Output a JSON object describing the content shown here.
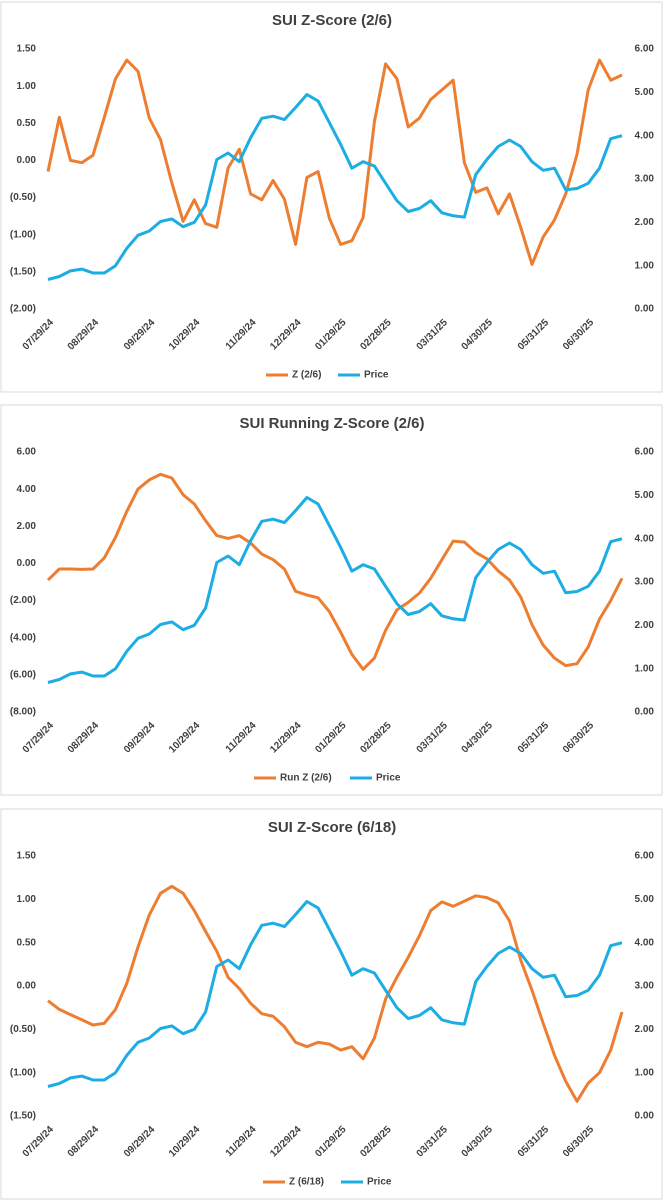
{
  "chart_data": [
    {
      "type": "line",
      "title": "SUI Z-Score (2/6)",
      "categories": [
        "07/29/24",
        null,
        null,
        null,
        "08/29/24",
        null,
        null,
        null,
        null,
        "09/29/24",
        null,
        null,
        null,
        "10/29/24",
        null,
        null,
        null,
        null,
        "11/29/24",
        null,
        null,
        null,
        "12/29/24",
        null,
        null,
        null,
        "01/29/25",
        null,
        null,
        null,
        "02/28/25",
        null,
        null,
        null,
        null,
        "03/31/25",
        null,
        null,
        null,
        "04/30/25",
        null,
        null,
        null,
        null,
        "05/31/25",
        null,
        null,
        null,
        "06/30/25",
        null,
        null,
        null
      ],
      "series": [
        {
          "name": "Z (2/6)",
          "color": "#ed7d31",
          "values": [
            -0.15,
            0.58,
            0.0,
            -0.03,
            0.07,
            0.58,
            1.1,
            1.35,
            1.2,
            0.57,
            0.28,
            -0.3,
            -0.82,
            -0.53,
            -0.85,
            -0.9,
            -0.1,
            0.15,
            -0.45,
            -0.53,
            -0.27,
            -0.52,
            -1.13,
            -0.23,
            -0.15,
            -0.78,
            -1.13,
            -1.08,
            -0.77,
            0.52,
            1.3,
            1.1,
            0.45,
            0.57,
            0.82,
            0.95,
            1.08,
            -0.03,
            -0.43,
            -0.37,
            -0.72,
            -0.45,
            -0.9,
            -1.4,
            -1.03,
            -0.8,
            -0.45,
            0.08,
            0.95,
            1.35,
            1.08,
            1.15
          ]
        },
        {
          "name": "Price",
          "color": "#1cade4",
          "axis": "y2",
          "values": [
            0.68,
            0.75,
            0.88,
            0.92,
            0.83,
            0.83,
            1.0,
            1.4,
            1.7,
            1.8,
            2.02,
            2.08,
            1.9,
            2.0,
            2.4,
            3.45,
            3.6,
            3.4,
            3.95,
            4.4,
            4.45,
            4.37,
            4.65,
            4.95,
            4.8,
            4.3,
            3.8,
            3.25,
            3.4,
            3.3,
            2.9,
            2.5,
            2.25,
            2.32,
            2.5,
            2.22,
            2.15,
            2.12,
            3.1,
            3.45,
            3.75,
            3.9,
            3.75,
            3.4,
            3.2,
            3.25,
            2.75,
            2.78,
            2.9,
            3.25,
            3.93,
            4.0
          ]
        }
      ],
      "ylim": [
        -2,
        1.5
      ],
      "yticks": [
        {
          "value": 1.5,
          "label": "1.50"
        },
        {
          "value": 1,
          "label": "1.00"
        },
        {
          "value": 0.5,
          "label": "0.50"
        },
        {
          "value": 0,
          "label": "0.00"
        },
        {
          "value": -0.5,
          "label": "(0.50)"
        },
        {
          "value": -1,
          "label": "(1.00)"
        },
        {
          "value": -1.5,
          "label": "(1.50)"
        },
        {
          "value": -2,
          "label": "(2.00)"
        }
      ],
      "y2lim": [
        0,
        6
      ],
      "y2ticks": [
        {
          "value": 6,
          "label": "6.00"
        },
        {
          "value": 5,
          "label": "5.00"
        },
        {
          "value": 4,
          "label": "4.00"
        },
        {
          "value": 3,
          "label": "3.00"
        },
        {
          "value": 2,
          "label": "2.00"
        },
        {
          "value": 1,
          "label": "1.00"
        },
        {
          "value": 0,
          "label": "0.00"
        }
      ],
      "negative_tick_color": "#c00000",
      "grid": false,
      "legend": "bottom"
    },
    {
      "type": "line",
      "title": "SUI Running Z-Score (2/6)",
      "categories": [
        "07/29/24",
        null,
        null,
        null,
        "08/29/24",
        null,
        null,
        null,
        null,
        "09/29/24",
        null,
        null,
        null,
        "10/29/24",
        null,
        null,
        null,
        null,
        "11/29/24",
        null,
        null,
        null,
        "12/29/24",
        null,
        null,
        null,
        "01/29/25",
        null,
        null,
        null,
        "02/28/25",
        null,
        null,
        null,
        null,
        "03/31/25",
        null,
        null,
        null,
        "04/30/25",
        null,
        null,
        null,
        null,
        "05/31/25",
        null,
        null,
        null,
        "06/30/25",
        null,
        null,
        null
      ],
      "series": [
        {
          "name": "Run Z (2/6)",
          "color": "#ed7d31",
          "values": [
            -0.9,
            -0.3,
            -0.3,
            -0.32,
            -0.3,
            0.3,
            1.4,
            2.8,
            4.0,
            4.5,
            4.8,
            4.6,
            3.7,
            3.2,
            2.3,
            1.5,
            1.35,
            1.5,
            1.1,
            0.5,
            0.2,
            -0.3,
            -1.5,
            -1.7,
            -1.85,
            -2.6,
            -3.7,
            -4.9,
            -5.7,
            -5.1,
            -3.6,
            -2.5,
            -2.1,
            -1.6,
            -0.8,
            0.2,
            1.2,
            1.15,
            0.6,
            0.25,
            -0.4,
            -0.9,
            -1.8,
            -3.3,
            -4.4,
            -5.1,
            -5.5,
            -5.4,
            -4.5,
            -3.0,
            -2.0,
            -0.8
          ]
        },
        {
          "name": "Price",
          "color": "#1cade4",
          "axis": "y2",
          "values": [
            0.68,
            0.75,
            0.88,
            0.92,
            0.83,
            0.83,
            1.0,
            1.4,
            1.7,
            1.8,
            2.02,
            2.08,
            1.9,
            2.0,
            2.4,
            3.45,
            3.6,
            3.4,
            3.95,
            4.4,
            4.45,
            4.37,
            4.65,
            4.95,
            4.8,
            4.3,
            3.8,
            3.25,
            3.4,
            3.3,
            2.9,
            2.5,
            2.25,
            2.32,
            2.5,
            2.22,
            2.15,
            2.12,
            3.1,
            3.45,
            3.75,
            3.9,
            3.75,
            3.4,
            3.2,
            3.25,
            2.75,
            2.78,
            2.9,
            3.25,
            3.93,
            4.0
          ]
        }
      ],
      "ylim": [
        -8,
        6
      ],
      "yticks": [
        {
          "value": 6,
          "label": "6.00"
        },
        {
          "value": 4,
          "label": "4.00"
        },
        {
          "value": 2,
          "label": "2.00"
        },
        {
          "value": 0,
          "label": "0.00"
        },
        {
          "value": -2,
          "label": "(2.00)"
        },
        {
          "value": -4,
          "label": "(4.00)"
        },
        {
          "value": -6,
          "label": "(6.00)"
        },
        {
          "value": -8,
          "label": "(8.00)"
        }
      ],
      "y2lim": [
        0,
        6
      ],
      "y2ticks": [
        {
          "value": 6,
          "label": "6.00"
        },
        {
          "value": 5,
          "label": "5.00"
        },
        {
          "value": 4,
          "label": "4.00"
        },
        {
          "value": 3,
          "label": "3.00"
        },
        {
          "value": 2,
          "label": "2.00"
        },
        {
          "value": 1,
          "label": "1.00"
        },
        {
          "value": 0,
          "label": "0.00"
        }
      ],
      "negative_tick_color": "#c00000",
      "grid": false,
      "legend": "bottom"
    },
    {
      "type": "line",
      "title": "SUI Z-Score (6/18)",
      "categories": [
        "07/29/24",
        null,
        null,
        null,
        "08/29/24",
        null,
        null,
        null,
        null,
        "09/29/24",
        null,
        null,
        null,
        "10/29/24",
        null,
        null,
        null,
        null,
        "11/29/24",
        null,
        null,
        null,
        "12/29/24",
        null,
        null,
        null,
        "01/29/25",
        null,
        null,
        null,
        "02/28/25",
        null,
        null,
        null,
        null,
        "03/31/25",
        null,
        null,
        null,
        "04/30/25",
        null,
        null,
        null,
        null,
        "05/31/25",
        null,
        null,
        null,
        "06/30/25",
        null,
        null,
        null
      ],
      "series": [
        {
          "name": "Z (6/18)",
          "color": "#ed7d31",
          "values": [
            -0.17,
            -0.27,
            -0.33,
            -0.39,
            -0.45,
            -0.43,
            -0.27,
            0.03,
            0.45,
            0.82,
            1.07,
            1.15,
            1.07,
            0.87,
            0.63,
            0.4,
            0.1,
            -0.03,
            -0.2,
            -0.32,
            -0.35,
            -0.47,
            -0.65,
            -0.7,
            -0.65,
            -0.67,
            -0.74,
            -0.7,
            -0.84,
            -0.6,
            -0.15,
            0.1,
            0.33,
            0.58,
            0.87,
            0.97,
            0.92,
            0.98,
            1.04,
            1.02,
            0.96,
            0.75,
            0.3,
            -0.05,
            -0.43,
            -0.8,
            -1.1,
            -1.33,
            -1.12,
            -1.0,
            -0.74,
            -0.3
          ]
        },
        {
          "name": "Price",
          "color": "#1cade4",
          "axis": "y2",
          "values": [
            0.68,
            0.75,
            0.88,
            0.92,
            0.83,
            0.83,
            1.0,
            1.4,
            1.7,
            1.8,
            2.02,
            2.08,
            1.9,
            2.0,
            2.4,
            3.45,
            3.6,
            3.4,
            3.95,
            4.4,
            4.45,
            4.37,
            4.65,
            4.95,
            4.8,
            4.3,
            3.8,
            3.25,
            3.4,
            3.3,
            2.9,
            2.5,
            2.25,
            2.32,
            2.5,
            2.22,
            2.15,
            2.12,
            3.1,
            3.45,
            3.75,
            3.9,
            3.75,
            3.4,
            3.2,
            3.25,
            2.75,
            2.78,
            2.9,
            3.25,
            3.93,
            4.0
          ]
        }
      ],
      "ylim": [
        -1.5,
        1.5
      ],
      "yticks": [
        {
          "value": 1.5,
          "label": "1.50"
        },
        {
          "value": 1,
          "label": "1.00"
        },
        {
          "value": 0.5,
          "label": "0.50"
        },
        {
          "value": 0,
          "label": "0.00"
        },
        {
          "value": -0.5,
          "label": "(0.50)"
        },
        {
          "value": -1,
          "label": "(1.00)"
        },
        {
          "value": -1.5,
          "label": "(1.50)"
        }
      ],
      "y2lim": [
        0,
        6
      ],
      "y2ticks": [
        {
          "value": 6,
          "label": "6.00"
        },
        {
          "value": 5,
          "label": "5.00"
        },
        {
          "value": 4,
          "label": "4.00"
        },
        {
          "value": 3,
          "label": "3.00"
        },
        {
          "value": 2,
          "label": "2.00"
        },
        {
          "value": 1,
          "label": "1.00"
        },
        {
          "value": 0,
          "label": "0.00"
        }
      ],
      "negative_tick_color": "#c00000",
      "grid": false,
      "legend": "bottom"
    }
  ]
}
